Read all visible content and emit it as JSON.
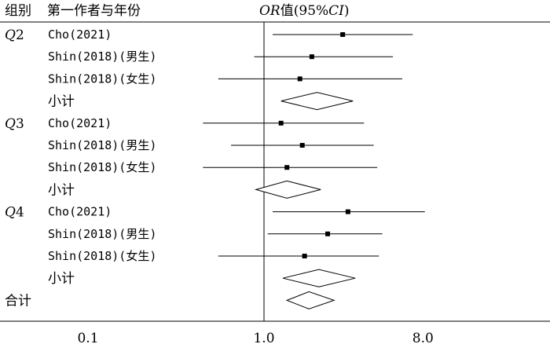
{
  "header": {
    "group_label": "组别",
    "study_label": "第一作者与年份",
    "or_italic": "OR",
    "or_text": "值(95%",
    "ci_italic": "CI",
    "or_close": ")"
  },
  "chart_data": {
    "type": "forest",
    "x_scale": "log",
    "xlim": [
      0.1,
      12
    ],
    "xticks": [
      0.1,
      1.0,
      8.0
    ],
    "xtick_labels": [
      "0.1",
      "1.0",
      "8.0"
    ],
    "reference_line": 1.0,
    "groups": [
      {
        "letter": "Q",
        "number": "2",
        "studies": [
          {
            "label": "Cho(2021)",
            "or": 2.8,
            "lower": 1.12,
            "upper": 7.0
          },
          {
            "label": "Shin(2018)(男生)",
            "or": 1.87,
            "lower": 0.88,
            "upper": 5.4
          },
          {
            "label": "Shin(2018)(女生)",
            "or": 1.6,
            "lower": 0.55,
            "upper": 6.1
          }
        ],
        "subtotal": {
          "label": "小计",
          "or": 2.0,
          "lower": 1.25,
          "upper": 3.2
        }
      },
      {
        "letter": "Q",
        "number": "3",
        "studies": [
          {
            "label": "Cho(2021)",
            "or": 1.25,
            "lower": 0.45,
            "upper": 3.7
          },
          {
            "label": "Shin(2018)(男生)",
            "or": 1.65,
            "lower": 0.65,
            "upper": 4.2
          },
          {
            "label": "Shin(2018)(女生)",
            "or": 1.35,
            "lower": 0.45,
            "upper": 4.4
          }
        ],
        "subtotal": {
          "label": "小计",
          "or": 1.35,
          "lower": 0.9,
          "upper": 2.1
        }
      },
      {
        "letter": "Q",
        "number": "4",
        "studies": [
          {
            "label": "Cho(2021)",
            "or": 3.0,
            "lower": 1.12,
            "upper": 8.2
          },
          {
            "label": "Shin(2018)(男生)",
            "or": 2.3,
            "lower": 1.05,
            "upper": 4.7
          },
          {
            "label": "Shin(2018)(女生)",
            "or": 1.7,
            "lower": 0.55,
            "upper": 4.5
          }
        ],
        "subtotal": {
          "label": "小计",
          "or": 2.05,
          "lower": 1.28,
          "upper": 3.3
        }
      }
    ],
    "overall": {
      "label": "合计",
      "or": 1.8,
      "lower": 1.35,
      "upper": 2.5
    }
  }
}
